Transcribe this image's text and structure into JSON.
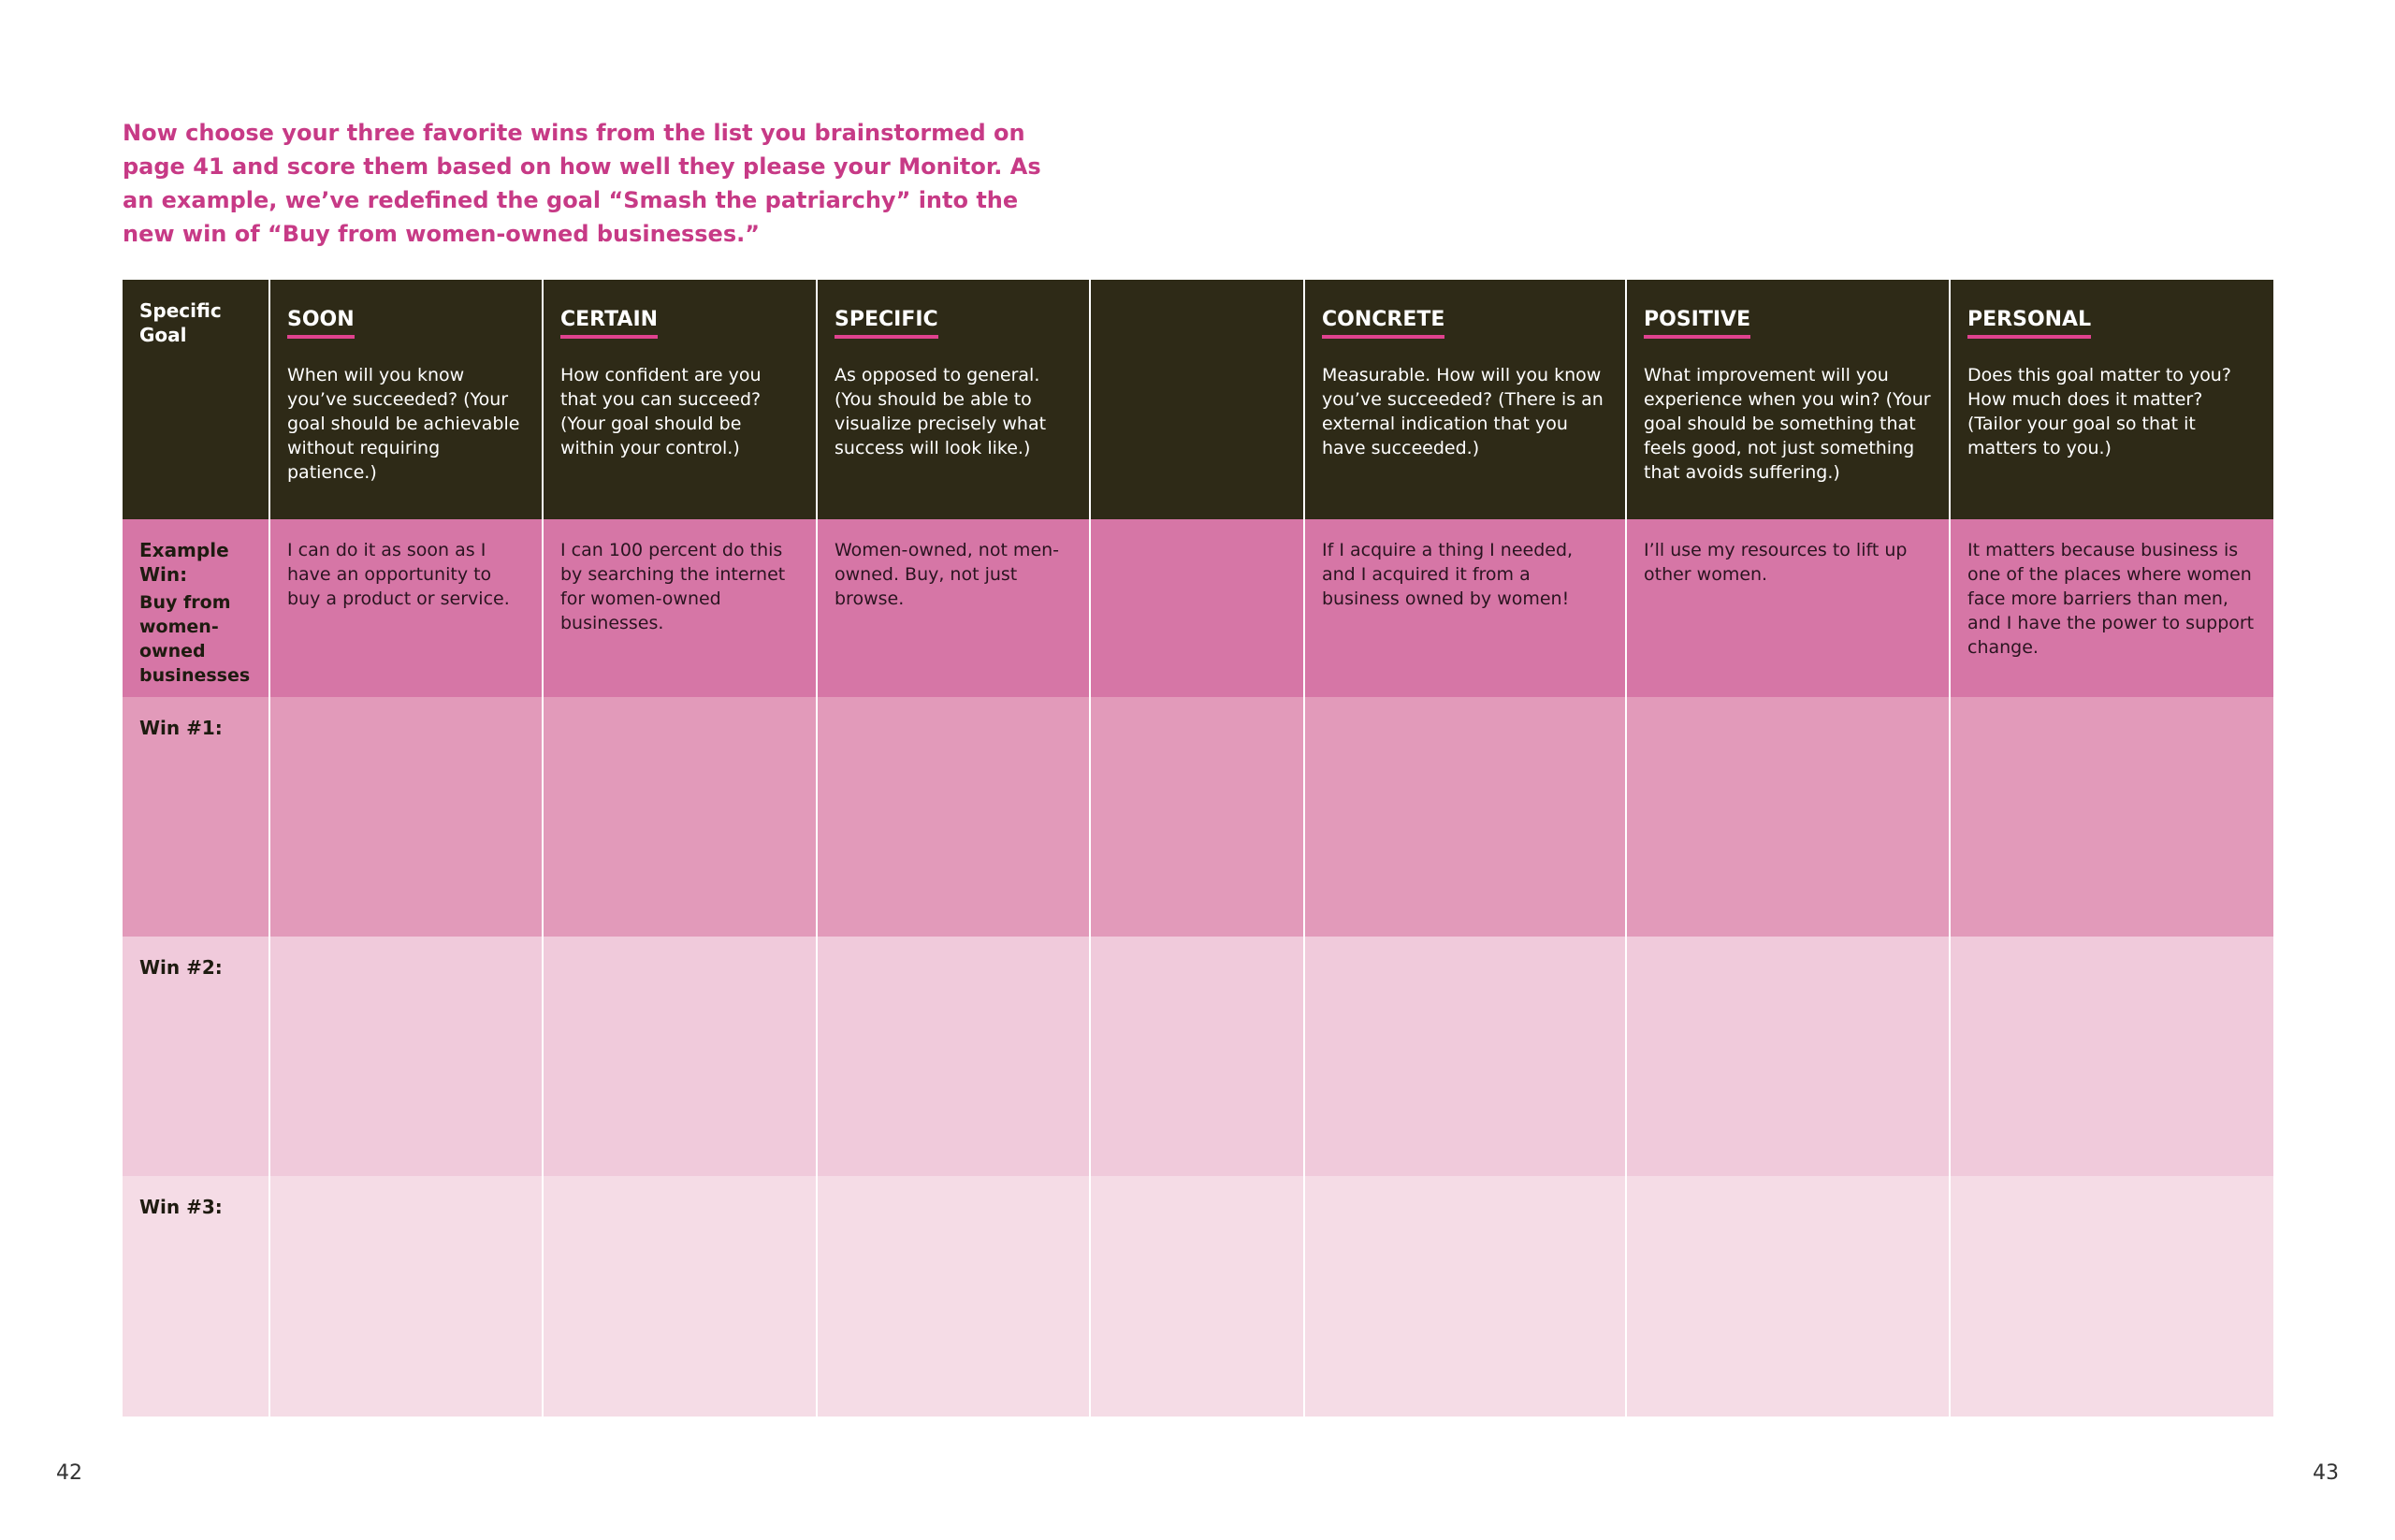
{
  "intro": "Now choose your three favorite wins from the list you brainstormed on page 41 and score them based on how well they please your Monitor. As an example, we’ve redefined the goal “Smash the patriarchy” into the new win of “Buy from women-owned businesses.”",
  "table": {
    "goal_header": "Specific Goal",
    "columns": [
      {
        "title": "SOON",
        "description": "When will you know you’ve succeeded? (Your goal should be achievable without requiring patience.)"
      },
      {
        "title": "CERTAIN",
        "description": "How confident are you that you can succeed? (Your goal should be within your control.)"
      },
      {
        "title": "SPECIFIC",
        "description": "As opposed to general. (You should be able to visualize precisely what success will look like.)"
      },
      {
        "title": "CONCRETE",
        "description": "Measurable. How will you know you’ve succeeded? (There is an external indication that you have succeeded.)"
      },
      {
        "title": "POSITIVE",
        "description": "What improvement will you experience when you win? (Your goal should be something that feels good, not just something that avoids suffering.)"
      },
      {
        "title": "PERSONAL",
        "description": "Does this goal matter to you? How much does it matter? (Tailor your goal so that it matters to you.)"
      }
    ],
    "example": {
      "label": "Example Win:",
      "goal": "Buy from women-owned businesses",
      "cells": [
        "I can do it as soon as I have an opportunity to buy a product or service.",
        "I can 100 percent do this by searching the internet for women-owned businesses.",
        "Women-owned, not men-owned. Buy, not just browse.",
        "If I acquire a thing I needed, and I acquired it from a business owned by women!",
        "I’ll use my resources to lift up other women.",
        "It matters because business is one of the places where women face more barriers than men, and I have the power to support change."
      ]
    },
    "win_rows": [
      "Win #1:",
      "Win #2:",
      "Win #3:"
    ]
  },
  "page_numbers": [
    "42",
    "43"
  ]
}
